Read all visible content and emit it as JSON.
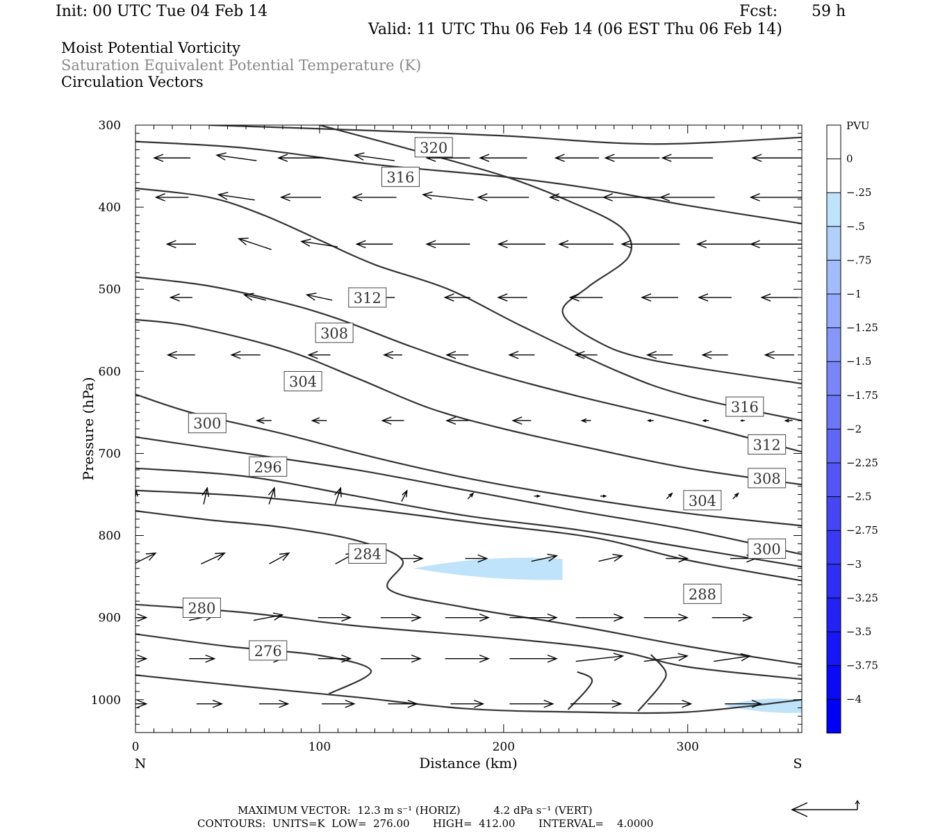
{
  "header": {
    "init": "Init: 00 UTC Tue 04 Feb 14",
    "fcst_label": "Fcst:",
    "fcst_value": "59 h",
    "valid": "Valid: 11 UTC Thu 06 Feb 14 (06 EST Thu 06 Feb 14)"
  },
  "fields": {
    "field1": "Moist Potential Vorticity",
    "field2": "Saturation Equivalent Potential Temperature (K)",
    "field3": "Circulation Vectors"
  },
  "footer": {
    "line1": "MAXIMUM VECTOR:  12.3 m s⁻¹ (HORIZ)          4.2 dPa s⁻¹ (VERT)",
    "line2": "CONTOURS:  UNITS=K  LOW=  276.00       HIGH=  412.00       INTERVAL=    4.0000"
  },
  "colors": {
    "contour": "#333333",
    "vector": "#000000",
    "mpv_shade": "#bfe3fb"
  },
  "chart_data": {
    "type": "cross-section",
    "xlabel": "Distance (km)",
    "ylabel": "Pressure (hPa)",
    "x_left_label": "N",
    "x_right_label": "S",
    "xlim": [
      0,
      362
    ],
    "ylim": [
      1040,
      300
    ],
    "xticks": [
      0,
      100,
      200,
      300
    ],
    "yticks": [
      300,
      400,
      500,
      600,
      700,
      800,
      900,
      1000
    ],
    "colorbar": {
      "title": "PVU",
      "levels": [
        "0",
        "-.25",
        "-.5",
        "-.75",
        "-1",
        "-1.25",
        "-1.5",
        "-1.75",
        "-2",
        "-2.25",
        "-2.5",
        "-2.75",
        "-3",
        "-3.25",
        "-3.5",
        "-3.75",
        "-4"
      ],
      "colors": [
        "#ffffff",
        "#ffffff",
        "#bfe3fb",
        "#b1d0fb",
        "#a3bdfb",
        "#95aafa",
        "#8797f9",
        "#7a86f8",
        "#6d76f7",
        "#6066f6",
        "#5356f5",
        "#4646f4",
        "#3a3af4",
        "#2e2ef4",
        "#2222f5",
        "#1616f6",
        "#0a0af7",
        "#0000f8"
      ]
    },
    "contour_labels": [
      {
        "text": "320",
        "x": 162,
        "p": 327
      },
      {
        "text": "316",
        "x": 144,
        "p": 363
      },
      {
        "text": "312",
        "x": 126,
        "p": 510
      },
      {
        "text": "308",
        "x": 108,
        "p": 553
      },
      {
        "text": "304",
        "x": 91,
        "p": 612
      },
      {
        "text": "300",
        "x": 39,
        "p": 663
      },
      {
        "text": "296",
        "x": 72,
        "p": 716
      },
      {
        "text": "284",
        "x": 126,
        "p": 822
      },
      {
        "text": "280",
        "x": 36,
        "p": 888
      },
      {
        "text": "276",
        "x": 72,
        "p": 940
      },
      {
        "text": "316",
        "x": 331,
        "p": 643
      },
      {
        "text": "312",
        "x": 343,
        "p": 689
      },
      {
        "text": "308",
        "x": 343,
        "p": 730
      },
      {
        "text": "304",
        "x": 308,
        "p": 757
      },
      {
        "text": "300",
        "x": 343,
        "p": 816
      },
      {
        "text": "288",
        "x": 308,
        "p": 871
      }
    ],
    "contours": [
      [
        [
          40,
          300
        ],
        [
          120,
          306
        ],
        [
          200,
          313
        ],
        [
          280,
          323
        ],
        [
          362,
          315
        ]
      ],
      [
        [
          0,
          320
        ],
        [
          60,
          328
        ],
        [
          130,
          348
        ],
        [
          200,
          363
        ],
        [
          250,
          378
        ],
        [
          300,
          398
        ],
        [
          362,
          420
        ]
      ],
      [
        [
          0,
          377
        ],
        [
          40,
          388
        ],
        [
          70,
          410
        ],
        [
          100,
          440
        ],
        [
          130,
          470
        ],
        [
          170,
          500
        ],
        [
          210,
          545
        ],
        [
          262,
          600
        ],
        [
          300,
          630
        ],
        [
          362,
          660
        ]
      ],
      [
        [
          0,
          485
        ],
        [
          40,
          496
        ],
        [
          80,
          516
        ],
        [
          110,
          536
        ],
        [
          150,
          570
        ],
        [
          190,
          600
        ],
        [
          240,
          630
        ],
        [
          300,
          662
        ],
        [
          362,
          698
        ]
      ],
      [
        [
          0,
          537
        ],
        [
          30,
          545
        ],
        [
          80,
          573
        ],
        [
          120,
          608
        ],
        [
          160,
          645
        ],
        [
          200,
          670
        ],
        [
          250,
          695
        ],
        [
          300,
          718
        ],
        [
          362,
          738
        ]
      ],
      [
        [
          0,
          628
        ],
        [
          30,
          650
        ],
        [
          80,
          676
        ],
        [
          130,
          705
        ],
        [
          180,
          730
        ],
        [
          230,
          750
        ],
        [
          300,
          773
        ],
        [
          362,
          788
        ]
      ],
      [
        [
          0,
          680
        ],
        [
          60,
          700
        ],
        [
          120,
          720
        ],
        [
          180,
          745
        ],
        [
          240,
          770
        ],
        [
          300,
          793
        ],
        [
          362,
          823
        ]
      ],
      [
        [
          0,
          718
        ],
        [
          60,
          728
        ],
        [
          120,
          752
        ],
        [
          180,
          776
        ],
        [
          240,
          793
        ],
        [
          300,
          815
        ],
        [
          362,
          838
        ]
      ],
      [
        [
          0,
          745
        ],
        [
          60,
          752
        ],
        [
          120,
          766
        ],
        [
          190,
          786
        ],
        [
          250,
          803
        ],
        [
          300,
          830
        ],
        [
          362,
          855
        ]
      ],
      [
        [
          0,
          770
        ],
        [
          40,
          781
        ],
        [
          80,
          790
        ],
        [
          120,
          806
        ],
        [
          145,
          830
        ],
        [
          138,
          866
        ],
        [
          180,
          888
        ],
        [
          240,
          910
        ],
        [
          300,
          935
        ],
        [
          362,
          957
        ]
      ],
      [
        [
          0,
          884
        ],
        [
          60,
          894
        ],
        [
          120,
          910
        ],
        [
          200,
          925
        ],
        [
          260,
          940
        ],
        [
          300,
          960
        ],
        [
          362,
          975
        ]
      ],
      [
        [
          0,
          920
        ],
        [
          50,
          935
        ],
        [
          100,
          946
        ],
        [
          128,
          965
        ],
        [
          105,
          993
        ]
      ],
      [
        [
          240,
          966
        ],
        [
          248,
          978
        ],
        [
          235,
          1012
        ]
      ],
      [
        [
          280,
          945
        ],
        [
          288,
          966
        ],
        [
          285,
          983
        ],
        [
          273,
          1014
        ]
      ],
      [
        [
          0,
          970
        ],
        [
          60,
          984
        ],
        [
          120,
          997
        ],
        [
          180,
          1011
        ],
        [
          240,
          1015
        ],
        [
          300,
          1015
        ],
        [
          362,
          1000
        ]
      ]
    ],
    "ridge_line": [
      [
        100,
        300
      ],
      [
        150,
        330
      ],
      [
        200,
        362
      ],
      [
        235,
        392
      ],
      [
        264,
        425
      ],
      [
        268,
        460
      ],
      [
        246,
        497
      ],
      [
        232,
        527
      ],
      [
        248,
        560
      ],
      [
        280,
        586
      ],
      [
        362,
        615
      ]
    ],
    "mpv_shade_regions": [
      {
        "x": [
          151,
          232
        ],
        "p": [
          826,
          854
        ]
      },
      {
        "x": [
          320,
          362
        ],
        "p": [
          998,
          1016
        ]
      }
    ],
    "vector_rows": [
      {
        "p": 340,
        "x": [
          20,
          55,
          90,
          130,
          170,
          200,
          240,
          270,
          300,
          350
        ],
        "u": [
          -20,
          -22,
          -25,
          -22,
          -24,
          -26,
          -24,
          -30,
          -28,
          -30
        ],
        "w": [
          0,
          1,
          0,
          1,
          0,
          0,
          0,
          0,
          0,
          0
        ]
      },
      {
        "p": 388,
        "x": [
          20,
          55,
          90,
          130,
          170,
          200,
          240,
          270,
          300,
          350
        ],
        "u": [
          -18,
          -20,
          -22,
          -24,
          -28,
          -28,
          -30,
          -32,
          -30,
          -32
        ],
        "w": [
          0,
          1,
          0,
          0,
          1,
          0,
          0,
          0,
          0,
          0
        ]
      },
      {
        "p": 445,
        "x": [
          25,
          65,
          100,
          130,
          170,
          210,
          245,
          280,
          320,
          350
        ],
        "u": [
          -16,
          -18,
          -20,
          -20,
          -24,
          -26,
          -30,
          -32,
          -30,
          -32
        ],
        "w": [
          0,
          2,
          1,
          0,
          0,
          0,
          0,
          0,
          0,
          0
        ]
      },
      {
        "p": 510,
        "x": [
          25,
          65,
          100,
          135,
          175,
          205,
          245,
          285,
          315,
          350
        ],
        "u": [
          -12,
          -12,
          -14,
          -12,
          -14,
          -16,
          -18,
          -20,
          -18,
          -20
        ],
        "w": [
          0,
          1,
          1,
          0,
          0,
          0,
          0,
          0,
          0,
          0
        ]
      },
      {
        "p": 580,
        "x": [
          25,
          60,
          100,
          140,
          175,
          210,
          245,
          285,
          315,
          350
        ],
        "u": [
          -15,
          -16,
          -12,
          -10,
          -12,
          -14,
          -12,
          -14,
          -14,
          -16
        ],
        "w": [
          0,
          0,
          0,
          0,
          0,
          0,
          0,
          0,
          0,
          0
        ]
      },
      {
        "p": 660,
        "x": [
          70,
          100,
          140,
          175,
          210,
          245,
          280,
          310,
          330,
          355
        ],
        "u": [
          -8,
          -8,
          -12,
          -12,
          -10,
          -5,
          -3,
          -3,
          -2,
          -4
        ],
        "w": [
          0,
          0,
          0,
          0,
          0,
          0,
          0,
          0,
          0,
          0
        ]
      },
      {
        "p": 752,
        "x": [
          0,
          38,
          74,
          110,
          146,
          182,
          218,
          254,
          290,
          326
        ],
        "u": [
          1,
          2,
          3,
          3,
          3,
          3,
          3,
          3,
          3,
          3
        ],
        "w": [
          2,
          3,
          3,
          3,
          2,
          1,
          0,
          0,
          1,
          1
        ]
      },
      {
        "p": 828,
        "x": [
          5,
          42,
          78,
          114,
          150,
          185,
          222,
          258,
          294,
          330
        ],
        "u": [
          12,
          13,
          11,
          11,
          12,
          12,
          14,
          13,
          12,
          14
        ],
        "w": [
          2,
          2,
          2,
          2,
          0,
          0,
          1,
          1,
          0,
          0
        ]
      },
      {
        "p": 900,
        "x": [
          0,
          36,
          72,
          108,
          144,
          180,
          216,
          252,
          288,
          324
        ],
        "u": [
          12,
          14,
          16,
          18,
          22,
          24,
          26,
          26,
          24,
          22
        ],
        "w": [
          0,
          1,
          1,
          0,
          0,
          0,
          0,
          0,
          0,
          0
        ]
      },
      {
        "p": 950,
        "x": [
          0,
          36,
          72,
          108,
          144,
          180,
          216,
          252,
          288,
          324
        ],
        "u": [
          12,
          14,
          16,
          18,
          22,
          24,
          26,
          26,
          24,
          20
        ],
        "w": [
          0,
          0,
          0,
          0,
          0,
          0,
          0,
          1,
          1,
          1
        ]
      },
      {
        "p": 1005,
        "x": [
          0,
          40,
          75,
          110,
          145,
          180,
          215,
          250,
          290,
          330
        ],
        "u": [
          12,
          14,
          16,
          18,
          16,
          18,
          24,
          28,
          24,
          20
        ],
        "w": [
          0,
          0,
          0,
          0,
          0,
          0,
          0,
          0,
          0,
          0
        ]
      }
    ]
  }
}
